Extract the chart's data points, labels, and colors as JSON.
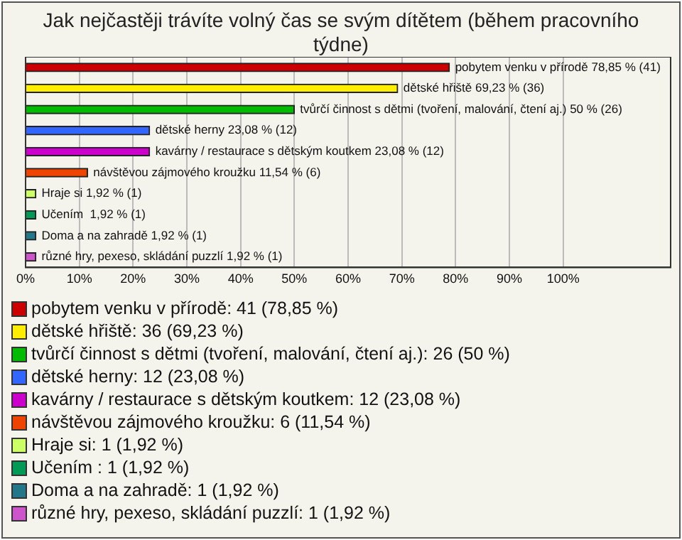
{
  "chart_data": {
    "type": "bar",
    "orientation": "horizontal",
    "title": "Jak nejčastěji trávíte volný čas se svým dítětem (během pracovního týdne)",
    "categories": [
      null,
      null,
      null,
      null,
      null,
      null,
      null,
      null,
      null,
      null
    ],
    "series": [
      {
        "name": "pobytem venku v přírodě: 41 (78,85 %)",
        "color": "#cc0000",
        "values": [
          78.85,
          null,
          null,
          null,
          null,
          null,
          null,
          null,
          null,
          null
        ],
        "value_labels": [
          "pobytem venku v přírodě 78,85 % (41)",
          null,
          null,
          null,
          null,
          null,
          null,
          null,
          null,
          null
        ]
      },
      {
        "name": "dětské hřiště: 36 (69,23 %)",
        "color": "#ffee00",
        "values": [
          null,
          69.23,
          null,
          null,
          null,
          null,
          null,
          null,
          null,
          null
        ],
        "value_labels": [
          null,
          "dětské hřiště 69,23 % (36)",
          null,
          null,
          null,
          null,
          null,
          null,
          null,
          null
        ]
      },
      {
        "name": "tvůrčí činnost s dětmi (tvoření, malování, čtení aj.): 26 (50 %)",
        "color": "#00bb00",
        "values": [
          null,
          null,
          50,
          null,
          null,
          null,
          null,
          null,
          null,
          null
        ],
        "value_labels": [
          null,
          null,
          "tvůrčí činnost s dětmi (tvoření, malování, čtení aj.) 50 % (26)",
          null,
          null,
          null,
          null,
          null,
          null,
          null
        ]
      },
      {
        "name": "dětské herny: 12 (23,08 %)",
        "color": "#3366ff",
        "values": [
          null,
          null,
          null,
          23.08,
          null,
          null,
          null,
          null,
          null,
          null
        ],
        "value_labels": [
          null,
          null,
          null,
          "dětské herny 23,08 % (12)",
          null,
          null,
          null,
          null,
          null,
          null
        ]
      },
      {
        "name": "kavárny / restaurace s dětským koutkem: 12 (23,08 %)",
        "color": "#cc00cc",
        "values": [
          null,
          null,
          null,
          null,
          23.08,
          null,
          null,
          null,
          null,
          null
        ],
        "value_labels": [
          null,
          null,
          null,
          null,
          "kavárny / restaurace s dětským koutkem 23,08 % (12)",
          null,
          null,
          null,
          null,
          null
        ]
      },
      {
        "name": "návštěvou zájmového kroužku: 6 (11,54 %)",
        "color": "#ee4400",
        "values": [
          null,
          null,
          null,
          null,
          null,
          11.54,
          null,
          null,
          null,
          null
        ],
        "value_labels": [
          null,
          null,
          null,
          null,
          null,
          "návštěvou zájmového kroužku 11,54 % (6)",
          null,
          null,
          null,
          null
        ]
      },
      {
        "name": "Hraje si: 1 (1,92 %)",
        "color": "#ccff66",
        "values": [
          null,
          null,
          null,
          null,
          null,
          null,
          1.92,
          null,
          null,
          null
        ],
        "value_labels": [
          null,
          null,
          null,
          null,
          null,
          null,
          "Hraje si 1,92 % (1)",
          null,
          null,
          null
        ]
      },
      {
        "name": "Učením : 1 (1,92 %)",
        "color": "#009955",
        "values": [
          null,
          null,
          null,
          null,
          null,
          null,
          null,
          1.92,
          null,
          null
        ],
        "value_labels": [
          null,
          null,
          null,
          null,
          null,
          null,
          null,
          "Učením  1,92 % (1)",
          null,
          null
        ]
      },
      {
        "name": "Doma a na zahradě: 1 (1,92 %)",
        "color": "#227788",
        "values": [
          null,
          null,
          null,
          null,
          null,
          null,
          null,
          null,
          1.92,
          null
        ],
        "value_labels": [
          null,
          null,
          null,
          null,
          null,
          null,
          null,
          null,
          "Doma a na zahradě 1,92 % (1)",
          null
        ]
      },
      {
        "name": "různé hry, pexeso, skládání puzzlí: 1 (1,92 %)",
        "color": "#cc55cc",
        "values": [
          null,
          null,
          null,
          null,
          null,
          null,
          null,
          null,
          null,
          1.92
        ],
        "value_labels": [
          null,
          null,
          null,
          null,
          null,
          null,
          null,
          null,
          null,
          "různé hry, pexeso, skládání puzzlí 1,92 % (1)"
        ]
      }
    ],
    "xlim": [
      0,
      120
    ],
    "xticks": [
      {
        "value": 0,
        "label": "0%"
      },
      {
        "value": 10,
        "label": "10%"
      },
      {
        "value": 20,
        "label": "20%"
      },
      {
        "value": 30,
        "label": "30%"
      },
      {
        "value": 40,
        "label": "40%"
      },
      {
        "value": 50,
        "label": "50%"
      },
      {
        "value": 60,
        "label": "60%"
      },
      {
        "value": 70,
        "label": "70%"
      },
      {
        "value": 80,
        "label": "80%"
      },
      {
        "value": 90,
        "label": "90%"
      },
      {
        "value": 100,
        "label": "100%"
      }
    ],
    "grid": "x",
    "legend": "bottom",
    "tick_labels": "x"
  }
}
